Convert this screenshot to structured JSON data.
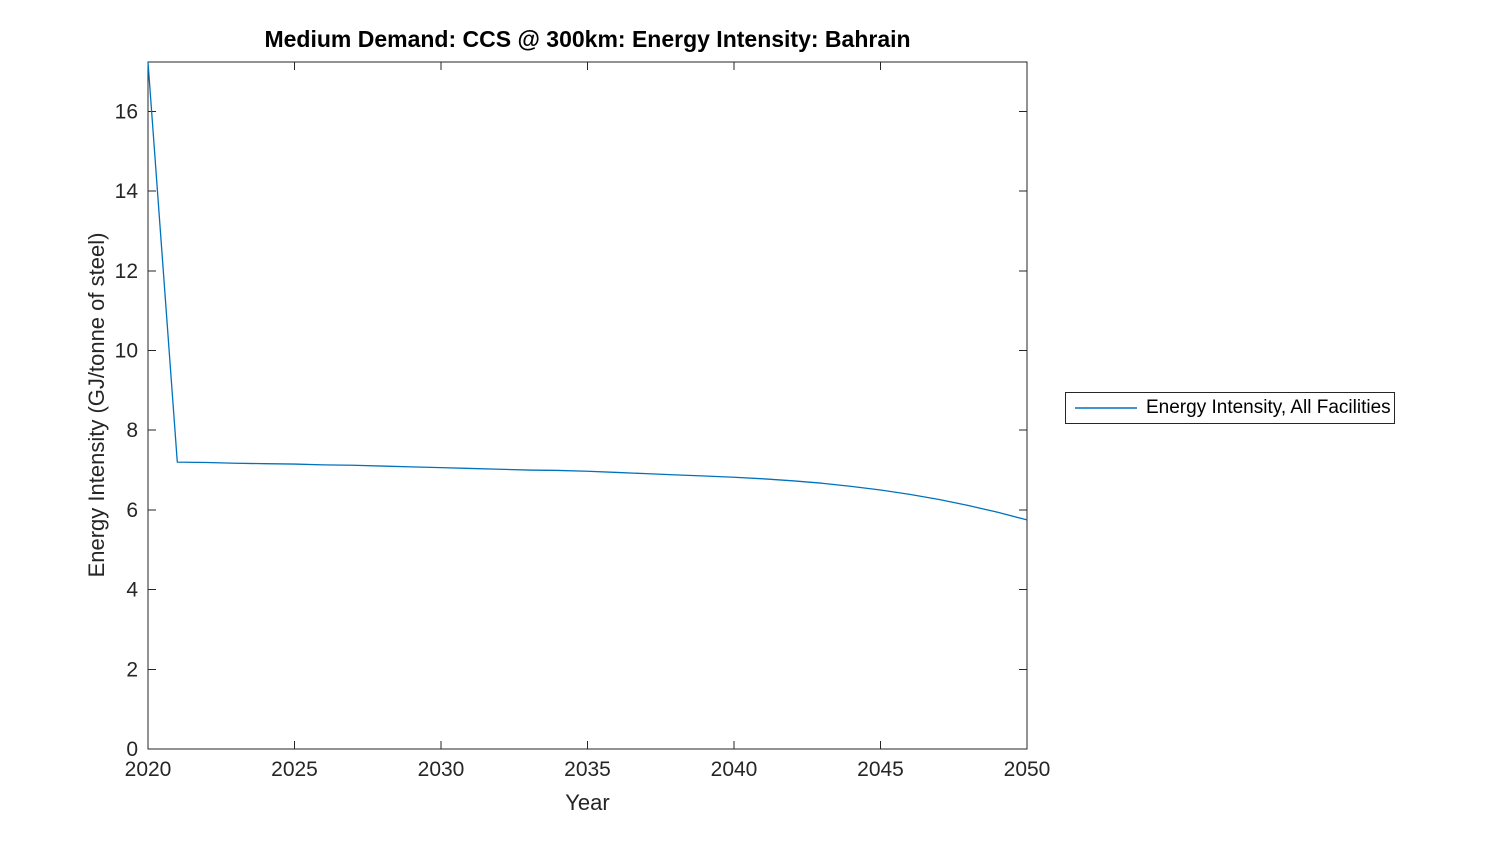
{
  "chart_data": {
    "type": "line",
    "title": "Medium Demand: CCS @ 300km: Energy Intensity: Bahrain",
    "xlabel": "Year",
    "ylabel": "Energy Intensity (GJ/tonne of steel)",
    "xlim": [
      2020,
      2050
    ],
    "ylim": [
      0,
      17.24
    ],
    "xticks": [
      2020,
      2025,
      2030,
      2035,
      2040,
      2045,
      2050
    ],
    "yticks": [
      0,
      2,
      4,
      6,
      8,
      10,
      12,
      14,
      16
    ],
    "grid": false,
    "legend_position": "right-outside",
    "axis_color": "#262626",
    "series": [
      {
        "name": "Energy Intensity, All Facilities",
        "color": "#0072BD",
        "x": [
          2020,
          2021,
          2022,
          2023,
          2024,
          2025,
          2026,
          2027,
          2028,
          2029,
          2030,
          2031,
          2032,
          2033,
          2034,
          2035,
          2036,
          2037,
          2038,
          2039,
          2040,
          2041,
          2042,
          2043,
          2044,
          2045,
          2046,
          2047,
          2048,
          2049,
          2050
        ],
        "y": [
          17.24,
          7.2,
          7.19,
          7.17,
          7.16,
          7.15,
          7.13,
          7.12,
          7.1,
          7.08,
          7.06,
          7.04,
          7.02,
          7.0,
          6.99,
          6.97,
          6.94,
          6.91,
          6.88,
          6.85,
          6.82,
          6.78,
          6.73,
          6.67,
          6.59,
          6.5,
          6.39,
          6.26,
          6.11,
          5.94,
          5.75
        ]
      }
    ]
  }
}
